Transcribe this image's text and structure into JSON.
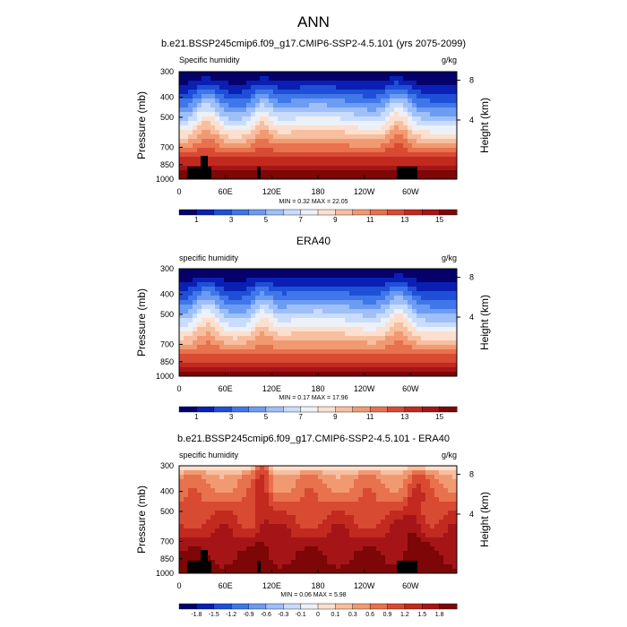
{
  "figure": {
    "title": "ANN"
  },
  "chart_data": [
    {
      "type": "heatmap",
      "title": "b.e21.BSSP245cmip6.f09_g17.CMIP6-SSP2-4.5.101 (yrs 2075-2099)",
      "left_label": "Specific humidity",
      "unit": "g/kg",
      "ylabel": "Pressure (mb)",
      "ylabel_right": "Height (km)",
      "yticks": [
        "300",
        "400",
        "500",
        "700",
        "850",
        "1000"
      ],
      "yticks_right": [
        "8",
        "4"
      ],
      "xticks": [
        "0",
        "60E",
        "120E",
        "180",
        "120W",
        "60W"
      ],
      "minmax": "MIN =   0.32  MAX =  22.05",
      "colorbar": [
        "1",
        "3",
        "5",
        "7",
        "9",
        "11",
        "13",
        "15"
      ],
      "min": 0.32,
      "max": 22.05
    },
    {
      "type": "heatmap",
      "title": "ERA40",
      "left_label": "specific humidity",
      "unit": "g/kg",
      "ylabel": "Pressure (mb)",
      "ylabel_right": "Height (km)",
      "yticks": [
        "300",
        "400",
        "500",
        "700",
        "850",
        "1000"
      ],
      "yticks_right": [
        "8",
        "4"
      ],
      "xticks": [
        "0",
        "60E",
        "120E",
        "180",
        "120W",
        "60W"
      ],
      "minmax": "MIN =   0.17  MAX =  17.96",
      "colorbar": [
        "1",
        "3",
        "5",
        "7",
        "9",
        "11",
        "13",
        "15"
      ],
      "min": 0.17,
      "max": 17.96
    },
    {
      "type": "heatmap",
      "title": "b.e21.BSSP245cmip6.f09_g17.CMIP6-SSP2-4.5.101 - ERA40",
      "left_label": "specific humidity",
      "unit": "g/kg",
      "ylabel": "Pressure (mb)",
      "ylabel_right": "Height (km)",
      "yticks": [
        "300",
        "400",
        "500",
        "700",
        "850",
        "1000"
      ],
      "yticks_right": [
        "8",
        "4"
      ],
      "xticks": [
        "0",
        "60E",
        "120E",
        "180",
        "120W",
        "60W"
      ],
      "minmax": "MIN =   0.06  MAX =   5.98",
      "colorbar": [
        "-1.8",
        "-1.5",
        "-1.2",
        "-0.9",
        "-0.6",
        "-0.3",
        "-0.1",
        "0",
        "0.1",
        "0.3",
        "0.6",
        "0.9",
        "1.2",
        "1.5",
        "1.8"
      ],
      "min": 0.06,
      "max": 5.98
    }
  ],
  "colors": {
    "abs_scale": [
      "#06006b",
      "#0a1fb3",
      "#1f4fd6",
      "#3f77ea",
      "#6b9cf2",
      "#9ebff8",
      "#c9dcfb",
      "#ecf1f7",
      "#fbe0cf",
      "#f7bfa0",
      "#f19a72",
      "#e8714e",
      "#d94a33",
      "#c22a1f",
      "#a51517",
      "#7d0606"
    ],
    "diff_scale": [
      "#06006b",
      "#0a1fb3",
      "#1f4fd6",
      "#3f77ea",
      "#6b9cf2",
      "#9ebff8",
      "#c9dcfb",
      "#ecf1f7",
      "#fbe0cf",
      "#f7bfa0",
      "#f19a72",
      "#e8714e",
      "#d94a33",
      "#c22a1f",
      "#a51517",
      "#7d0606"
    ]
  }
}
